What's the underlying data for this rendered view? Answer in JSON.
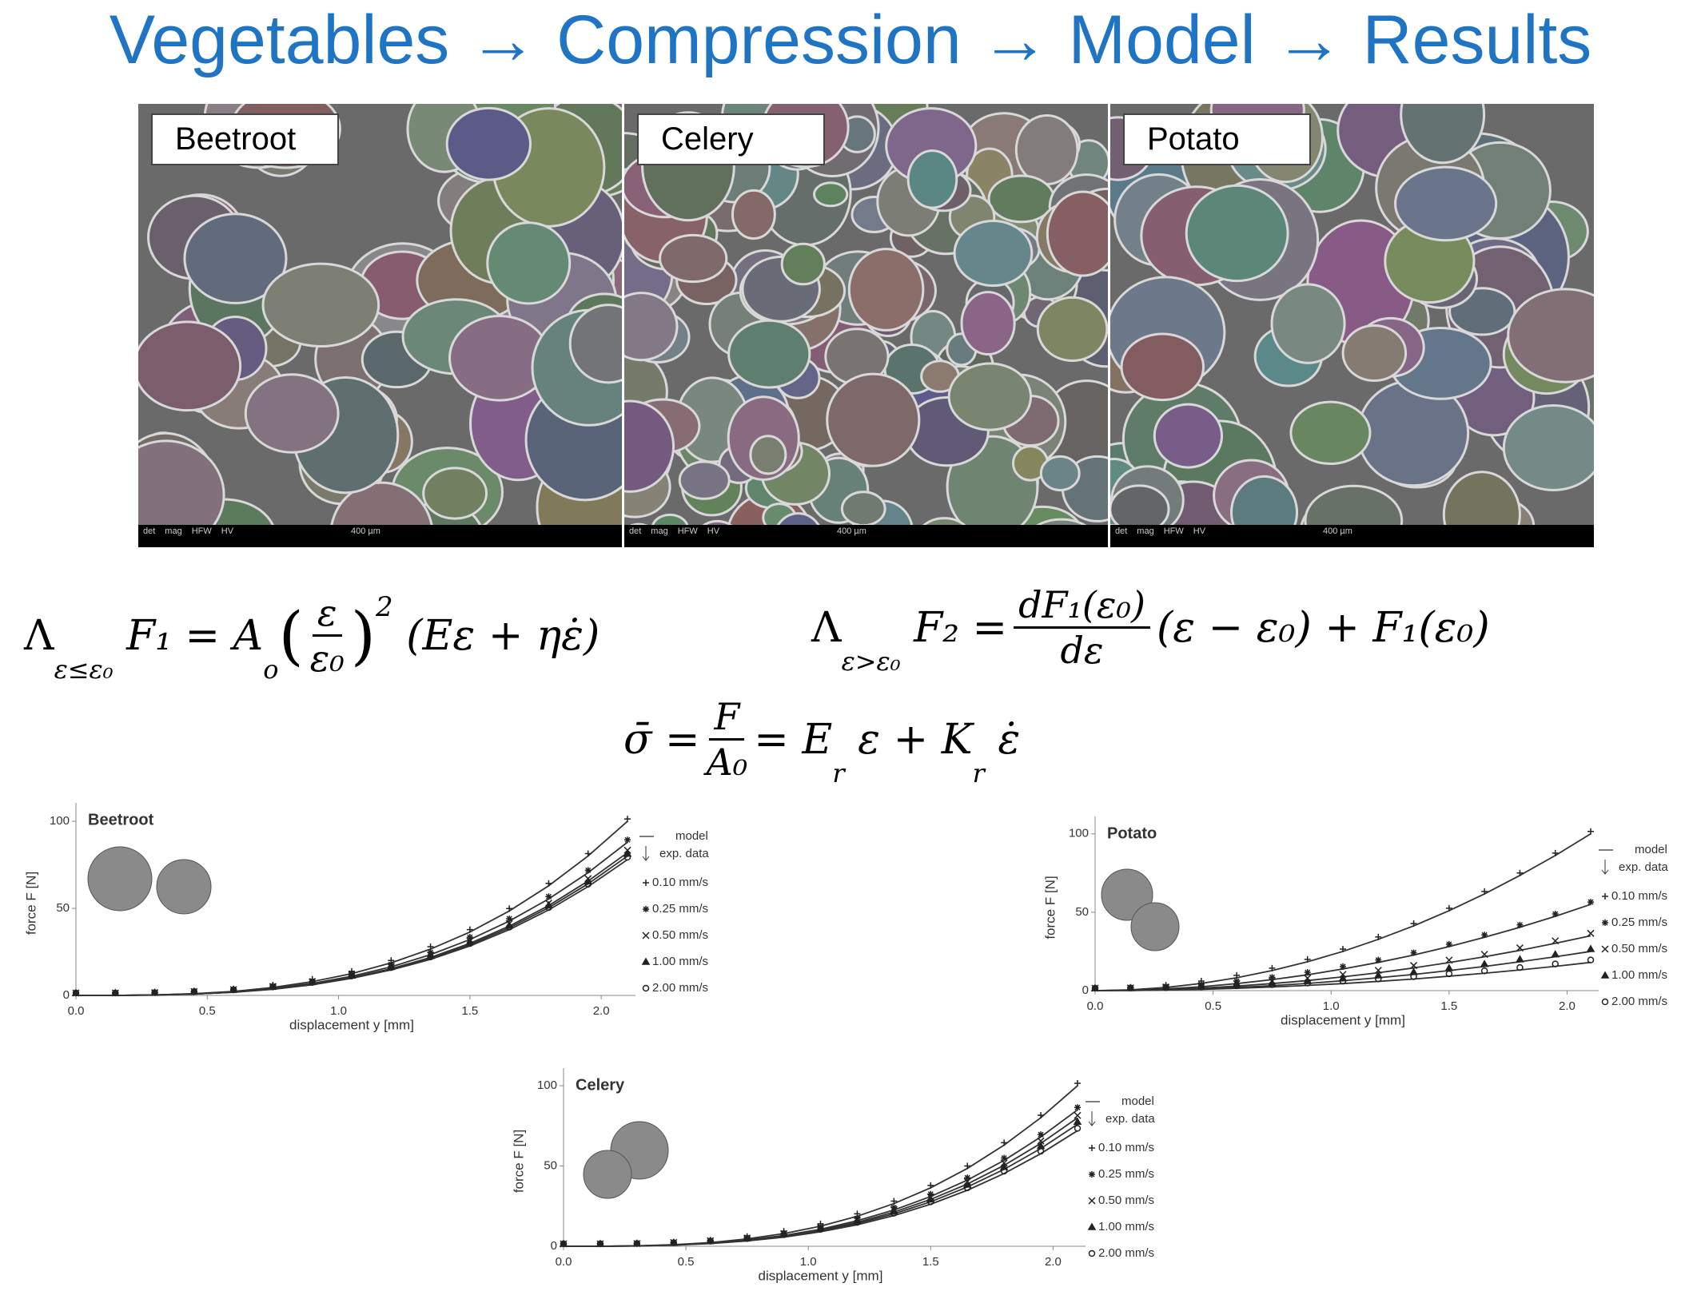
{
  "header": {
    "title": "Vegetables → Compression → Model → Results"
  },
  "micrographs": [
    {
      "label": "Beetroot",
      "scale": "400 µm"
    },
    {
      "label": "Celery",
      "scale": "400 µm"
    },
    {
      "label": "Potato",
      "scale": "400 µm"
    }
  ],
  "micrograph_meta": [
    "det",
    "mag",
    "HFW",
    "HV"
  ],
  "equations": {
    "eq1": {
      "lambda": "Λ",
      "cond": "ε≤ε₀",
      "lhs": "F₁ = A",
      "lhs_sub": "o",
      "num": "ε",
      "den": "ε₀",
      "power": "2",
      "rhs": "(Eε + ηε̇)"
    },
    "eq2": {
      "lambda": "Λ",
      "cond": "ε>ε₀",
      "lhs": "F₂ =",
      "num": "dF₁(ε₀)",
      "den": "dε",
      "rhs": "(ε − ε₀) + F₁(ε₀)"
    },
    "eq3": {
      "lhs": "σ̄ =",
      "num": "F",
      "den": "A₀",
      "rhs": "= E",
      "sub1": "r",
      "mid": "ε + K",
      "sub2": "r",
      "end": "ε̇"
    }
  },
  "chart_data": [
    {
      "type": "line",
      "title": "Beetroot",
      "xlabel": "displacement y [mm]",
      "ylabel": "force F [N]",
      "legend_model": "model",
      "legend_data": "exp. data",
      "x": [
        0,
        0.15,
        0.3,
        0.45,
        0.6,
        0.75,
        0.9,
        1.05,
        1.2,
        1.35,
        1.5,
        1.65,
        1.8,
        1.95,
        2.1
      ],
      "series": [
        {
          "name": "0.10 mm/s",
          "color": "#333333",
          "values": [
            0,
            0,
            0.3,
            1,
            2.3,
            4.6,
            7.9,
            12.5,
            18.7,
            26.6,
            36.4,
            48.5,
            63,
            80.1,
            100
          ]
        },
        {
          "name": "0.25 mm/s",
          "color": "#333333",
          "values": [
            0,
            0,
            0.3,
            0.9,
            2.1,
            4,
            6.9,
            11,
            16.4,
            23.4,
            32.1,
            42.7,
            55.4,
            70.5,
            88
          ]
        },
        {
          "name": "0.50 mm/s",
          "color": "#333333",
          "values": [
            0,
            0,
            0.2,
            0.8,
            1.9,
            3.7,
            6.5,
            10.3,
            15.3,
            21.8,
            29.9,
            39.8,
            51.6,
            65.7,
            82
          ]
        },
        {
          "name": "1.00 mm/s",
          "color": "#333333",
          "values": [
            0,
            0,
            0.2,
            0.8,
            1.9,
            3.6,
            6.3,
            10,
            14.9,
            21.3,
            29.2,
            38.8,
            50.4,
            64.1,
            80
          ]
        },
        {
          "name": "2.00 mm/s",
          "color": "#333333",
          "values": [
            0,
            0,
            0.2,
            0.8,
            1.8,
            3.5,
            6.1,
            9.8,
            14.6,
            20.7,
            28.4,
            37.8,
            49.1,
            62.5,
            78
          ]
        }
      ],
      "xlim": [
        0,
        2.1
      ],
      "ylim": [
        0,
        106
      ],
      "xticks": [
        {
          "value": 0,
          "label": "0.0"
        },
        {
          "value": 0.5,
          "label": "0.5"
        },
        {
          "value": 1,
          "label": "1.0"
        },
        {
          "value": 1.5,
          "label": "1.5"
        },
        {
          "value": 2,
          "label": "2.0"
        }
      ],
      "yticks": [
        0,
        50,
        100
      ]
    },
    {
      "type": "line",
      "title": "Potato",
      "xlabel": "displacement y [mm]",
      "ylabel": "force F [N]",
      "legend_model": "model",
      "legend_data": "exp. data",
      "x": [
        0,
        0.15,
        0.3,
        0.45,
        0.6,
        0.75,
        0.9,
        1.05,
        1.2,
        1.35,
        1.5,
        1.65,
        1.8,
        1.95,
        2.1
      ],
      "series": [
        {
          "name": "0.10 mm/s",
          "color": "#333333",
          "values": [
            0,
            0.5,
            2,
            4.6,
            8.2,
            12.8,
            18.4,
            25,
            32.7,
            41.3,
            51,
            61.7,
            73.5,
            86.2,
            100
          ]
        },
        {
          "name": "0.25 mm/s",
          "color": "#333333",
          "values": [
            0,
            0.3,
            1.1,
            2.5,
            4.5,
            7,
            10.1,
            13.8,
            18,
            22.7,
            28.1,
            34,
            40.4,
            47.4,
            55
          ]
        },
        {
          "name": "0.50 mm/s",
          "color": "#333333",
          "values": [
            0,
            0.2,
            0.7,
            1.6,
            2.9,
            4.5,
            6.4,
            8.8,
            11.4,
            14.5,
            17.9,
            21.6,
            25.7,
            30.2,
            35
          ]
        },
        {
          "name": "1.00 mm/s",
          "color": "#333333",
          "values": [
            0,
            0.1,
            0.5,
            1.1,
            2,
            3.2,
            4.6,
            6.3,
            8.2,
            10.3,
            12.8,
            15.4,
            18.4,
            21.6,
            25
          ]
        },
        {
          "name": "2.00 mm/s",
          "color": "#333333",
          "values": [
            0,
            0.1,
            0.4,
            0.8,
            1.5,
            2.3,
            3.3,
            4.5,
            5.9,
            7.4,
            9.2,
            11.1,
            13.2,
            15.5,
            18
          ]
        }
      ],
      "xlim": [
        0,
        2.1
      ],
      "ylim": [
        0,
        106
      ],
      "xticks": [
        {
          "value": 0,
          "label": "0.0"
        },
        {
          "value": 0.5,
          "label": "0.5"
        },
        {
          "value": 1,
          "label": "1.0"
        },
        {
          "value": 1.5,
          "label": "1.5"
        },
        {
          "value": 2,
          "label": "2.0"
        }
      ],
      "yticks": [
        0,
        50,
        100
      ]
    },
    {
      "type": "line",
      "title": "Celery",
      "xlabel": "displacement y [mm]",
      "ylabel": "force F [N]",
      "legend_model": "model",
      "legend_data": "exp. data",
      "x": [
        0,
        0.15,
        0.3,
        0.45,
        0.6,
        0.75,
        0.9,
        1.05,
        1.2,
        1.35,
        1.5,
        1.65,
        1.8,
        1.95,
        2.1
      ],
      "series": [
        {
          "name": "0.10 mm/s",
          "color": "#333333",
          "values": [
            0,
            0,
            0.3,
            1,
            2.3,
            4.6,
            7.9,
            12.5,
            18.7,
            26.6,
            36.4,
            48.5,
            63,
            80.1,
            100
          ]
        },
        {
          "name": "0.25 mm/s",
          "color": "#333333",
          "values": [
            0,
            0,
            0.2,
            0.8,
            2,
            3.9,
            6.7,
            10.6,
            15.9,
            22.6,
            31,
            41.2,
            53.5,
            68.1,
            85
          ]
        },
        {
          "name": "0.50 mm/s",
          "color": "#333333",
          "values": [
            0,
            0,
            0.2,
            0.8,
            1.9,
            3.6,
            6.3,
            10,
            14.9,
            21.3,
            29.2,
            38.8,
            50.4,
            64.1,
            80
          ]
        },
        {
          "name": "1.00 mm/s",
          "color": "#333333",
          "values": [
            0,
            0,
            0.2,
            0.7,
            1.8,
            3.5,
            6,
            9.5,
            14.2,
            20.2,
            27.7,
            36.9,
            47.9,
            60.9,
            76
          ]
        },
        {
          "name": "2.00 mm/s",
          "color": "#333333",
          "values": [
            0,
            0,
            0.2,
            0.7,
            1.7,
            3.3,
            5.7,
            9,
            13.4,
            19.1,
            26.2,
            34.9,
            45.3,
            57.7,
            72
          ]
        }
      ],
      "xlim": [
        0,
        2.1
      ],
      "ylim": [
        0,
        106
      ],
      "xticks": [
        {
          "value": 0,
          "label": "0.0"
        },
        {
          "value": 0.5,
          "label": "0.5"
        },
        {
          "value": 1,
          "label": "1.0"
        },
        {
          "value": 1.5,
          "label": "1.5"
        },
        {
          "value": 2,
          "label": "2.0"
        }
      ],
      "yticks": [
        0,
        50,
        100
      ]
    }
  ]
}
